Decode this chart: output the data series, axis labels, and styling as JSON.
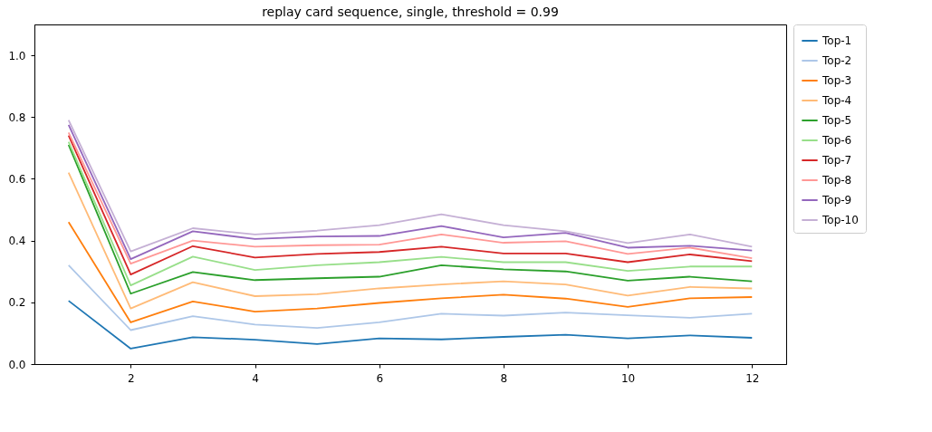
{
  "chart_data": {
    "type": "line",
    "title": "replay card sequence, single, threshold = 0.99",
    "x": [
      1,
      2,
      3,
      4,
      5,
      6,
      7,
      8,
      9,
      10,
      11,
      12
    ],
    "xlim": [
      0.45,
      12.55
    ],
    "xticks": [
      2,
      4,
      6,
      8,
      10,
      12
    ],
    "ylim": [
      0,
      1.1
    ],
    "yticks": [
      {
        "value": 0,
        "label": "0.0"
      },
      {
        "value": 0.2,
        "label": "0.2"
      },
      {
        "value": 0.4,
        "label": "0.4"
      },
      {
        "value": 0.6,
        "label": "0.6"
      },
      {
        "value": 0.8,
        "label": "0.8"
      },
      {
        "value": 1,
        "label": "1.0"
      }
    ],
    "grid": false,
    "legend": "top right",
    "marker": "none",
    "line_style": "solid",
    "series": [
      {
        "name": "Top-1",
        "color": "#1f77b4",
        "values": [
          0.205,
          0.05,
          0.087,
          0.079,
          0.065,
          0.083,
          0.08,
          0.088,
          0.095,
          0.083,
          0.093,
          0.085
        ]
      },
      {
        "name": "Top-2",
        "color": "#aec7e8",
        "values": [
          0.32,
          0.11,
          0.155,
          0.128,
          0.117,
          0.135,
          0.163,
          0.157,
          0.167,
          0.158,
          0.15,
          0.163
        ]
      },
      {
        "name": "Top-3",
        "color": "#ff7f0e",
        "values": [
          0.46,
          0.135,
          0.203,
          0.17,
          0.18,
          0.198,
          0.213,
          0.225,
          0.212,
          0.185,
          0.213,
          0.217
        ]
      },
      {
        "name": "Top-4",
        "color": "#ffbb78",
        "values": [
          0.62,
          0.18,
          0.265,
          0.22,
          0.226,
          0.245,
          0.258,
          0.268,
          0.258,
          0.222,
          0.25,
          0.245
        ]
      },
      {
        "name": "Top-5",
        "color": "#2ca02c",
        "values": [
          0.71,
          0.228,
          0.298,
          0.272,
          0.278,
          0.283,
          0.32,
          0.307,
          0.3,
          0.27,
          0.283,
          0.268
        ]
      },
      {
        "name": "Top-6",
        "color": "#98df8a",
        "values": [
          0.72,
          0.255,
          0.348,
          0.305,
          0.32,
          0.33,
          0.347,
          0.33,
          0.33,
          0.302,
          0.316,
          0.316
        ]
      },
      {
        "name": "Top-7",
        "color": "#d62728",
        "values": [
          0.74,
          0.29,
          0.382,
          0.345,
          0.357,
          0.363,
          0.38,
          0.358,
          0.358,
          0.33,
          0.355,
          0.333
        ]
      },
      {
        "name": "Top-8",
        "color": "#ff9896",
        "values": [
          0.75,
          0.325,
          0.4,
          0.38,
          0.385,
          0.387,
          0.42,
          0.393,
          0.398,
          0.357,
          0.377,
          0.343
        ]
      },
      {
        "name": "Top-9",
        "color": "#9467bd",
        "values": [
          0.775,
          0.34,
          0.43,
          0.405,
          0.413,
          0.415,
          0.447,
          0.41,
          0.425,
          0.377,
          0.383,
          0.368
        ]
      },
      {
        "name": "Top-10",
        "color": "#c5b0d5",
        "values": [
          0.79,
          0.365,
          0.44,
          0.42,
          0.432,
          0.45,
          0.485,
          0.45,
          0.43,
          0.392,
          0.42,
          0.38
        ]
      }
    ]
  }
}
